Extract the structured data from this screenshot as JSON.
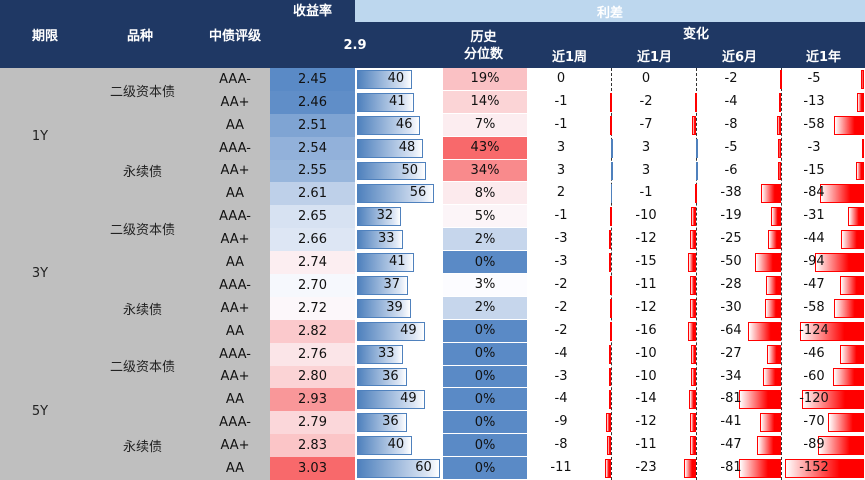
{
  "header": {
    "yield_group": "收益率",
    "spread_group": "利差",
    "tenor": "期限",
    "type": "品种",
    "rating": "中债评级",
    "spread_ref": "2.9",
    "percentile": "历史\n分位数",
    "change_group": "变化",
    "change_cols": [
      "近1周",
      "近1月",
      "近6月",
      "近1年"
    ]
  },
  "colors": {
    "header_bg": "#1f3864",
    "header_light": "#bdd7ee",
    "label_bg": "#bfbfbf",
    "low": "#5a8ac6",
    "high": "#f8696b",
    "negative_bar": "#ff0000",
    "spread_bar": "#4f81bd"
  },
  "groups": [
    {
      "tenor": "1Y",
      "types": [
        "二级资本债",
        "永续债"
      ]
    },
    {
      "tenor": "3Y",
      "types": [
        "二级资本债",
        "永续债"
      ]
    },
    {
      "tenor": "5Y",
      "types": [
        "二级资本债",
        "永续债"
      ]
    }
  ],
  "rows": [
    {
      "rating": "AAA-",
      "yield": "2.45",
      "spread": 40,
      "pct": "19%",
      "w": 0,
      "m": 0,
      "m6": -2,
      "y": -5
    },
    {
      "rating": "AA+",
      "yield": "2.46",
      "spread": 41,
      "pct": "14%",
      "w": -1,
      "m": -2,
      "m6": -4,
      "y": -13
    },
    {
      "rating": "AA",
      "yield": "2.51",
      "spread": 46,
      "pct": "7%",
      "w": -1,
      "m": -7,
      "m6": -8,
      "y": -58
    },
    {
      "rating": "AAA-",
      "yield": "2.54",
      "spread": 48,
      "pct": "43%",
      "w": 3,
      "m": 3,
      "m6": -5,
      "y": -3
    },
    {
      "rating": "AA+",
      "yield": "2.55",
      "spread": 50,
      "pct": "34%",
      "w": 3,
      "m": 3,
      "m6": -6,
      "y": -15
    },
    {
      "rating": "AA",
      "yield": "2.61",
      "spread": 56,
      "pct": "8%",
      "w": 2,
      "m": -1,
      "m6": -38,
      "y": -84
    },
    {
      "rating": "AAA-",
      "yield": "2.65",
      "spread": 32,
      "pct": "5%",
      "w": -1,
      "m": -10,
      "m6": -19,
      "y": -31
    },
    {
      "rating": "AA+",
      "yield": "2.66",
      "spread": 33,
      "pct": "2%",
      "w": -3,
      "m": -12,
      "m6": -25,
      "y": -44
    },
    {
      "rating": "AA",
      "yield": "2.74",
      "spread": 41,
      "pct": "0%",
      "w": -3,
      "m": -15,
      "m6": -50,
      "y": -94
    },
    {
      "rating": "AAA-",
      "yield": "2.70",
      "spread": 37,
      "pct": "3%",
      "w": -2,
      "m": -11,
      "m6": -28,
      "y": -47
    },
    {
      "rating": "AA+",
      "yield": "2.72",
      "spread": 39,
      "pct": "2%",
      "w": -2,
      "m": -12,
      "m6": -30,
      "y": -58
    },
    {
      "rating": "AA",
      "yield": "2.82",
      "spread": 49,
      "pct": "0%",
      "w": -2,
      "m": -16,
      "m6": -64,
      "y": -124
    },
    {
      "rating": "AAA-",
      "yield": "2.76",
      "spread": 33,
      "pct": "0%",
      "w": -4,
      "m": -10,
      "m6": -27,
      "y": -46
    },
    {
      "rating": "AA+",
      "yield": "2.80",
      "spread": 36,
      "pct": "0%",
      "w": -3,
      "m": -10,
      "m6": -34,
      "y": -60
    },
    {
      "rating": "AA",
      "yield": "2.93",
      "spread": 49,
      "pct": "0%",
      "w": -4,
      "m": -14,
      "m6": -81,
      "y": -120
    },
    {
      "rating": "AAA-",
      "yield": "2.79",
      "spread": 36,
      "pct": "0%",
      "w": -9,
      "m": -12,
      "m6": -41,
      "y": -70
    },
    {
      "rating": "AA+",
      "yield": "2.83",
      "spread": 40,
      "pct": "0%",
      "w": -8,
      "m": -11,
      "m6": -47,
      "y": -89
    },
    {
      "rating": "AA",
      "yield": "3.03",
      "spread": 60,
      "pct": "0%",
      "w": -11,
      "m": -23,
      "m6": -81,
      "y": -152
    }
  ]
}
